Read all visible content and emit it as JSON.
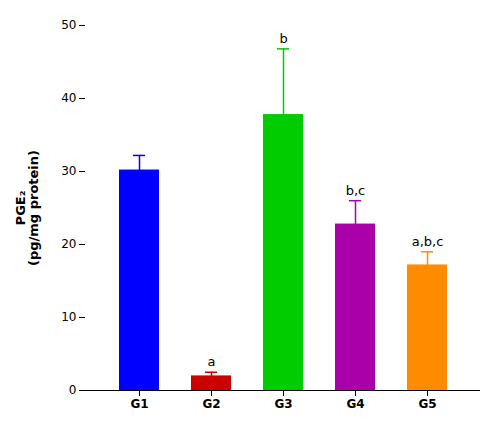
{
  "chart_data": {
    "type": "bar",
    "categories": [
      "G1",
      "G2",
      "G3",
      "G4",
      "G5"
    ],
    "values": [
      30.2,
      2.0,
      37.8,
      22.8,
      17.2
    ],
    "errors": [
      2.0,
      0.5,
      9.0,
      3.2,
      1.8
    ],
    "colors": [
      "#0000FF",
      "#CC0000",
      "#00CC00",
      "#AA00AA",
      "#FF8C00"
    ],
    "annotations": [
      {
        "category": "G2",
        "text": "a"
      },
      {
        "category": "G3",
        "text": "b"
      },
      {
        "category": "G4",
        "text": "b,c"
      },
      {
        "category": "G5",
        "text": "a,b,c"
      }
    ],
    "ylabel": "PGE₂\n(pg/mg protein)",
    "ylim": [
      0,
      50
    ],
    "yticks": [
      0,
      10,
      20,
      30,
      40,
      50
    ],
    "grid": false
  }
}
